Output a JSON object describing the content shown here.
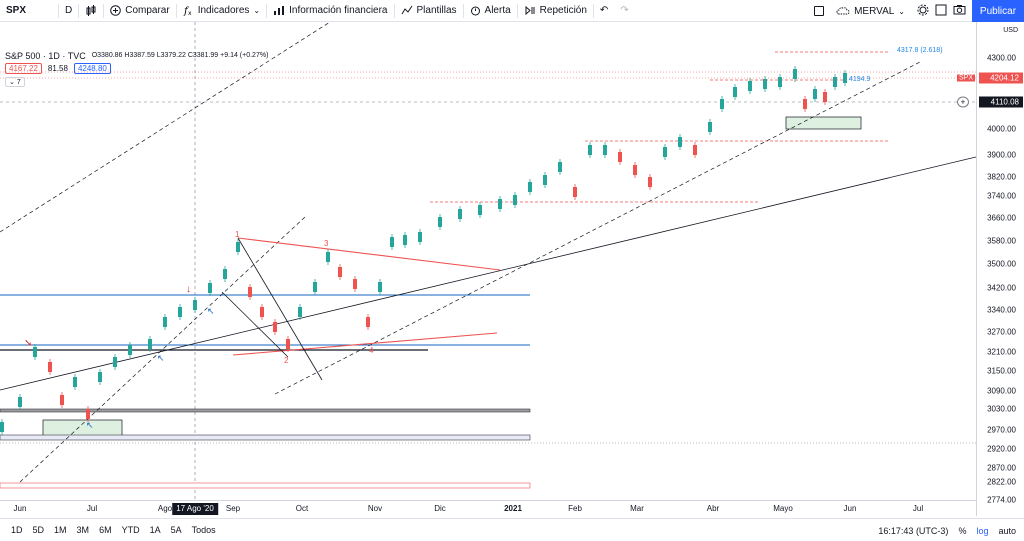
{
  "toolbar": {
    "symbol": "SPX",
    "interval": "D",
    "compare_label": "Comparar",
    "indicators_label": "Indicadores",
    "financials_label": "Información financiera",
    "templates_label": "Plantillas",
    "alert_label": "Alerta",
    "replay_label": "Repetición",
    "layout_name": "MERVAL",
    "publish_label": "Publicar"
  },
  "legend": {
    "title": "S&P 500 · 1D · TVC",
    "ohlc": "O3380.86 H3387.59 L3379.22 C3381.99 +9.14 (+0.27%)",
    "bid": "4167.22",
    "spread": "81.58",
    "ask": "4248.80",
    "indicators_count": "7"
  },
  "price_axis": {
    "currency": "USD",
    "ticks": [
      "4300.00",
      "4200.00",
      "4110.00",
      "4000.00",
      "3900.00",
      "3820.00",
      "3740.00",
      "3660.00",
      "3580.00",
      "3500.00",
      "3420.00",
      "3340.00",
      "3270.00",
      "3210.00",
      "3150.00",
      "3090.00",
      "3030.00",
      "2970.00",
      "2920.00",
      "2870.00",
      "2822.00",
      "2774.00"
    ],
    "last_price_label": "SPX",
    "last_price": "4204.12",
    "crosshair_price": "4110.08"
  },
  "time_axis": {
    "ticks": [
      "Jun",
      "Jul",
      "Ago",
      "Sep",
      "Oct",
      "Nov",
      "Dic",
      "2021",
      "Feb",
      "Mar",
      "Abr",
      "Mayo",
      "Jun",
      "Jul"
    ],
    "crosshair_date": "17 Ago '20"
  },
  "annotations": {
    "fib_target": "4317.8 (2.618)",
    "level": "4194.9",
    "wave_1": "1",
    "wave_2": "2",
    "wave_3": "3",
    "wave_4": "4"
  },
  "bottom_bar": {
    "ranges": [
      "1D",
      "5D",
      "1M",
      "3M",
      "6M",
      "YTD",
      "1A",
      "5A",
      "Todos"
    ],
    "clock": "16:17:43 (UTC-3)",
    "percent_label": "%",
    "log_label": "log",
    "auto_label": "auto"
  },
  "colors": {
    "up": "#26a69a",
    "down": "#ef5350",
    "accent": "#2962ff",
    "price_tag": "#ef5350"
  }
}
